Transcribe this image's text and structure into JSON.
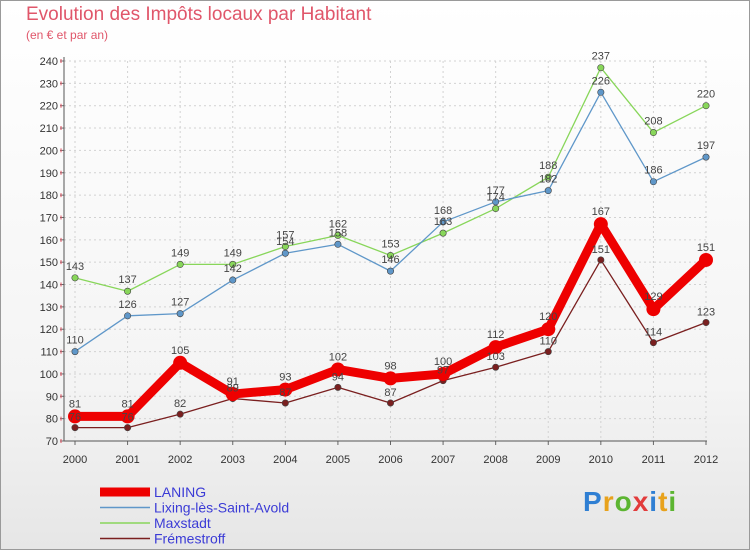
{
  "header": {
    "title": "Evolution des Impôts locaux par Habitant",
    "subtitle": "(en € et par an)"
  },
  "logo": {
    "text": "Proxiti"
  },
  "chart_data": {
    "type": "line",
    "x": [
      2000,
      2001,
      2002,
      2003,
      2004,
      2005,
      2006,
      2007,
      2008,
      2009,
      2010,
      2011,
      2012
    ],
    "xlabels": [
      "2000",
      "2001",
      "2002",
      "2003",
      "2004",
      "2005",
      "2006",
      "2007",
      "2008",
      "2009",
      "2010",
      "2011",
      "2012"
    ],
    "ylim": [
      70,
      240
    ],
    "yticks": [
      70,
      80,
      90,
      100,
      110,
      120,
      130,
      140,
      150,
      160,
      170,
      180,
      190,
      200,
      210,
      220,
      230,
      240
    ],
    "grid": true,
    "series": [
      {
        "name": "Maxstadt",
        "color": "#88d65a",
        "values": [
          143,
          137,
          149,
          149,
          157,
          162,
          153,
          163,
          174,
          188,
          237,
          208,
          220
        ]
      },
      {
        "name": "Lixing-lès-Saint-Avold",
        "color": "#5f97c9",
        "values": [
          110,
          126,
          127,
          142,
          154,
          158,
          146,
          168,
          177,
          182,
          226,
          186,
          197
        ]
      },
      {
        "name": "Frémestroff",
        "color": "#7a1f1f",
        "values": [
          76,
          76,
          82,
          89,
          87,
          94,
          87,
          97,
          103,
          110,
          151,
          114,
          123
        ]
      },
      {
        "name": "LANING",
        "color": "#ee0000",
        "values": [
          81,
          81,
          105,
          91,
          93,
          102,
          98,
          100,
          112,
          120,
          167,
          129,
          151
        ]
      }
    ],
    "legend_order": [
      "LANING",
      "Lixing-lès-Saint-Avold",
      "Maxstadt",
      "Frémestroff"
    ],
    "legend_position": "bottom-left"
  }
}
